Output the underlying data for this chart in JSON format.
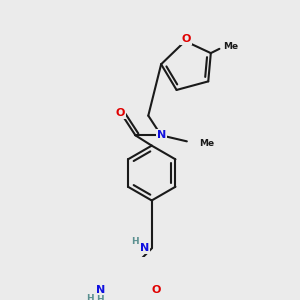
{
  "bg_color": "#ebebeb",
  "bond_color": "#1a1a1a",
  "bond_width": 1.5,
  "atom_colors": {
    "O": "#e00000",
    "N": "#1010e0",
    "H": "#5a9090",
    "C": "#1a1a1a"
  },
  "font_size": 7.0
}
